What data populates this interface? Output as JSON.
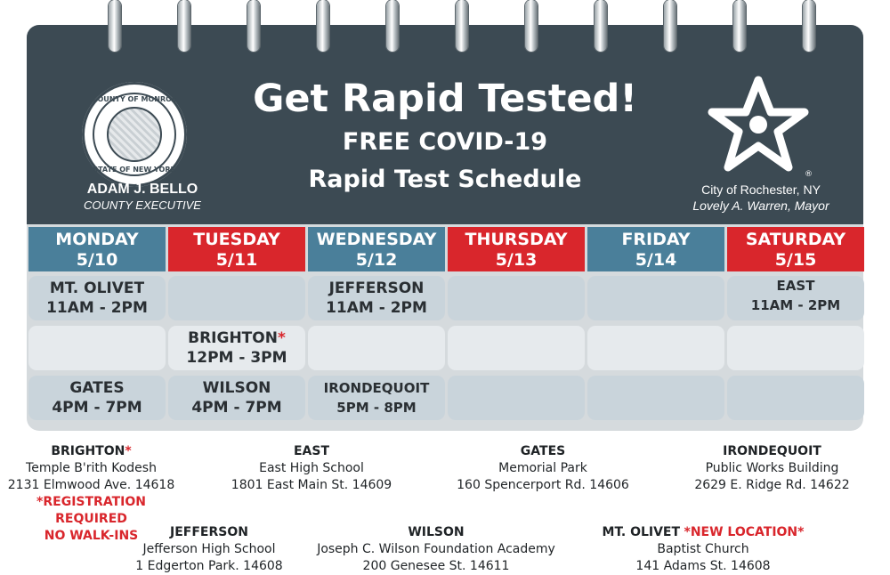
{
  "header": {
    "title": "Get Rapid Tested!",
    "subtitle_line1": "FREE COVID-19",
    "subtitle_line2": "Rapid Test Schedule",
    "left": {
      "seal_top": "COUNTY OF MONROE",
      "seal_bottom": "STATE OF NEW YORK",
      "name": "ADAM J. BELLO",
      "title": "COUNTY EXECUTIVE"
    },
    "right": {
      "city": "City of Rochester, NY",
      "mayor": "Lovely A. Warren, Mayor",
      "registered": "®"
    }
  },
  "days": [
    {
      "day": "MONDAY",
      "date": "5/10",
      "color": "#4a7f9a"
    },
    {
      "day": "TUESDAY",
      "date": "5/11",
      "color": "#d9262c"
    },
    {
      "day": "WEDNESDAY",
      "date": "5/12",
      "color": "#4a7f9a"
    },
    {
      "day": "THURSDAY",
      "date": "5/13",
      "color": "#d9262c"
    },
    {
      "day": "FRIDAY",
      "date": "5/14",
      "color": "#4a7f9a"
    },
    {
      "day": "SATURDAY",
      "date": "5/15",
      "color": "#d9262c"
    }
  ],
  "schedule": {
    "row1": {
      "mon": {
        "site": "MT. OLIVET",
        "time": "11AM - 2PM"
      },
      "wed": {
        "site": "JEFFERSON",
        "time": "11AM - 2PM"
      },
      "sat": {
        "site": "EAST",
        "time": "11AM - 2PM"
      }
    },
    "row2": {
      "tue": {
        "site": "BRIGHTON",
        "asterisk": "*",
        "time": "12PM - 3PM"
      }
    },
    "row3": {
      "mon": {
        "site": "GATES",
        "time": "4PM - 7PM"
      },
      "tue": {
        "site": "WILSON",
        "time": "4PM - 7PM"
      },
      "wed": {
        "site": "IRONDEQUOIT",
        "time": "5PM - 8PM"
      }
    }
  },
  "locations": {
    "brighton": {
      "name": "BRIGHTON",
      "asterisk": "*",
      "line1": "Temple B'rith Kodesh",
      "line2": "2131 Elmwood Ave. 14618",
      "note1": "*REGISTRATION REQUIRED",
      "note2": "NO WALK-INS"
    },
    "east": {
      "name": "EAST",
      "line1": "East High School",
      "line2": "1801 East Main St. 14609"
    },
    "gates": {
      "name": "GATES",
      "line1": "Memorial Park",
      "line2": "160 Spencerport Rd. 14606"
    },
    "irondequoit": {
      "name": "IRONDEQUOIT",
      "line1": "Public Works Building",
      "line2": "2629 E. Ridge Rd. 14622"
    },
    "jefferson": {
      "name": "JEFFERSON",
      "line1": "Jefferson High School",
      "line2": "1 Edgerton Park. 14608"
    },
    "wilson": {
      "name": "WILSON",
      "line1": "Joseph C. Wilson Foundation Academy",
      "line2": "200 Genesee St. 14611"
    },
    "mtolivet": {
      "name": "MT. OLIVET",
      "note": "*NEW LOCATION*",
      "line1": "Baptist Church",
      "line2": "141 Adams St. 14608"
    }
  },
  "colors": {
    "header_bg": "#3c4a53",
    "blue": "#4a7f9a",
    "red": "#d9262c",
    "cell": "#c9d4db",
    "cell_light": "#e6eaed"
  }
}
